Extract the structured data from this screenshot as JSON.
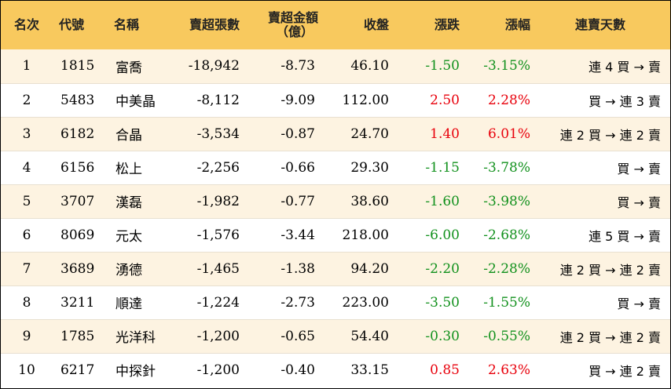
{
  "colors": {
    "header_bg": "#f8c95e",
    "odd_row_bg": "#fdf3e1",
    "up": "#e8000b",
    "down": "#12911d"
  },
  "headers": {
    "rank": "名次",
    "code": "代號",
    "name": "名稱",
    "net_sell_shares": "賣超張數",
    "net_sell_amount_line1": "賣超金額",
    "net_sell_amount_line2": "（億）",
    "close": "收盤",
    "change": "漲跌",
    "change_pct": "漲幅",
    "streak": "連賣天數"
  },
  "rows": [
    {
      "rank": "1",
      "code": "1815",
      "name": "富喬",
      "net_sell_shares": "-18,942",
      "net_sell_amount": "-8.73",
      "close": "46.10",
      "change": "-1.50",
      "change_pct": "-3.15%",
      "direction": "down",
      "streak": "連 4 買 → 賣"
    },
    {
      "rank": "2",
      "code": "5483",
      "name": "中美晶",
      "net_sell_shares": "-8,112",
      "net_sell_amount": "-9.09",
      "close": "112.00",
      "change": "2.50",
      "change_pct": "2.28%",
      "direction": "up",
      "streak": "買 → 連 3 賣"
    },
    {
      "rank": "3",
      "code": "6182",
      "name": "合晶",
      "net_sell_shares": "-3,534",
      "net_sell_amount": "-0.87",
      "close": "24.70",
      "change": "1.40",
      "change_pct": "6.01%",
      "direction": "up",
      "streak": "連 2 買 → 連 2 賣"
    },
    {
      "rank": "4",
      "code": "6156",
      "name": "松上",
      "net_sell_shares": "-2,256",
      "net_sell_amount": "-0.66",
      "close": "29.30",
      "change": "-1.15",
      "change_pct": "-3.78%",
      "direction": "down",
      "streak": "買 → 賣"
    },
    {
      "rank": "5",
      "code": "3707",
      "name": "漢磊",
      "net_sell_shares": "-1,982",
      "net_sell_amount": "-0.77",
      "close": "38.60",
      "change": "-1.60",
      "change_pct": "-3.98%",
      "direction": "down",
      "streak": "買 → 賣"
    },
    {
      "rank": "6",
      "code": "8069",
      "name": "元太",
      "net_sell_shares": "-1,576",
      "net_sell_amount": "-3.44",
      "close": "218.00",
      "change": "-6.00",
      "change_pct": "-2.68%",
      "direction": "down",
      "streak": "連 5 買 → 賣"
    },
    {
      "rank": "7",
      "code": "3689",
      "name": "湧德",
      "net_sell_shares": "-1,465",
      "net_sell_amount": "-1.38",
      "close": "94.20",
      "change": "-2.20",
      "change_pct": "-2.28%",
      "direction": "down",
      "streak": "連 2 買 → 連 2 賣"
    },
    {
      "rank": "8",
      "code": "3211",
      "name": "順達",
      "net_sell_shares": "-1,224",
      "net_sell_amount": "-2.73",
      "close": "223.00",
      "change": "-3.50",
      "change_pct": "-1.55%",
      "direction": "down",
      "streak": "買 → 賣"
    },
    {
      "rank": "9",
      "code": "1785",
      "name": "光洋科",
      "net_sell_shares": "-1,200",
      "net_sell_amount": "-0.65",
      "close": "54.40",
      "change": "-0.30",
      "change_pct": "-0.55%",
      "direction": "down",
      "streak": "連 2 買 → 連 2 賣"
    },
    {
      "rank": "10",
      "code": "6217",
      "name": "中探針",
      "net_sell_shares": "-1,200",
      "net_sell_amount": "-0.40",
      "close": "33.15",
      "change": "0.85",
      "change_pct": "2.63%",
      "direction": "up",
      "streak": "買 → 連 2 賣"
    }
  ]
}
